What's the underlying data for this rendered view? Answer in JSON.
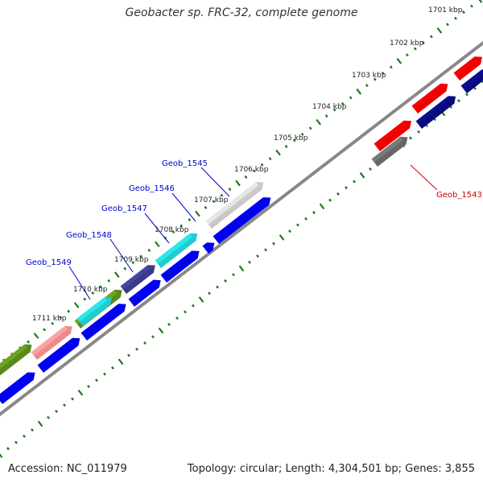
{
  "title": "Geobacter sp. FRC-32, complete genome",
  "accession": "Accession: NC_011979",
  "summary": "Topology: circular; Length: 4,304,501 bp; Genes: 3,855",
  "ticks": [
    {
      "label": "1701 kbp"
    },
    {
      "label": "1702 kbp"
    },
    {
      "label": "1703 kbp"
    },
    {
      "label": "1704 kbp"
    },
    {
      "label": "1705 kbp"
    },
    {
      "label": "1706 kbp"
    },
    {
      "label": "1707 kbp"
    },
    {
      "label": "1708 kbp"
    },
    {
      "label": "1709 kbp"
    },
    {
      "label": "1710 kbp"
    },
    {
      "label": "1711 kbp"
    }
  ],
  "gene_labels": [
    {
      "text": "Geob_1543",
      "color": "#cc0000"
    },
    {
      "text": "Geob_1545",
      "color": "#0000cc"
    },
    {
      "text": "Geob_1546",
      "color": "#0000cc"
    },
    {
      "text": "Geob_1547",
      "color": "#0000cc"
    },
    {
      "text": "Geob_1548",
      "color": "#0000cc"
    },
    {
      "text": "Geob_1549",
      "color": "#0000cc"
    }
  ],
  "colors": {
    "tick": "#1a7a1a",
    "backbone": "#888888",
    "cds": "#0000ee",
    "cds_dark": "#0a0a7a",
    "red": "#ee0000",
    "grey": "#666666",
    "light_grey": "#c8c8c8",
    "cyan": "#22cccc",
    "navy": "#3a3a88",
    "olive": "#5a8a1a",
    "pink": "#f08a8a"
  }
}
